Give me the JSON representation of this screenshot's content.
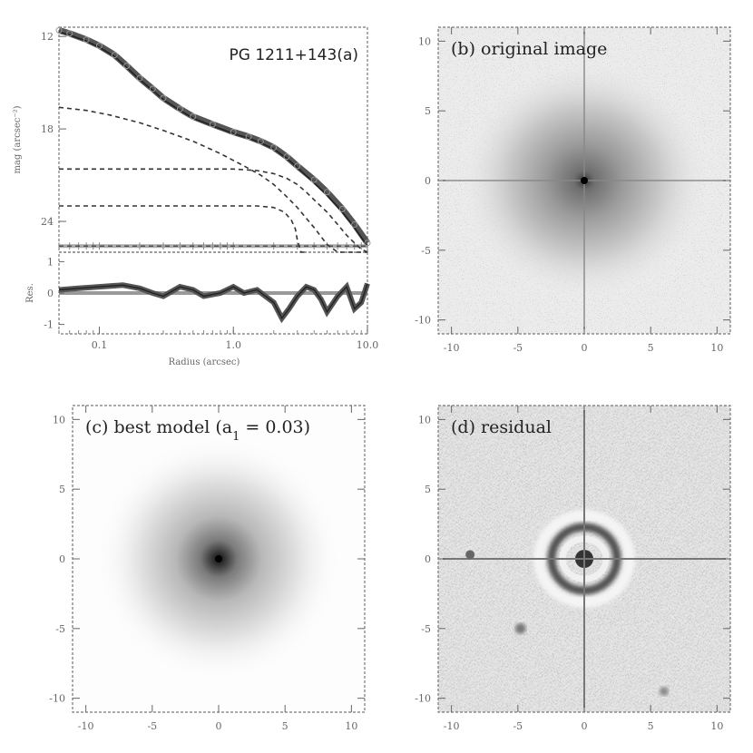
{
  "chart_data": [
    {
      "type": "line",
      "panel": "a",
      "title": "PG 1211+143(a)",
      "xlabel": "Radius (arcsec)",
      "ylabel": "mag (arcsec⁻²)",
      "residual_ylabel": "Res.",
      "x_scale": "log",
      "xlim": [
        0.05,
        10.0
      ],
      "ylim": [
        26.0,
        11.4
      ],
      "residual_ylim": [
        -1.3,
        1.3
      ],
      "xtick_labels": [
        "0.1",
        "1.0",
        "10.0"
      ],
      "xticks": [
        0.1,
        1.0,
        10.0
      ],
      "ytick_labels": [
        "12",
        "18",
        "24"
      ],
      "yticks": [
        12,
        18,
        24
      ],
      "residual_tick_labels": [
        "1",
        "0",
        "-1"
      ],
      "residual_ticks": [
        1,
        0,
        -1
      ],
      "series": [
        {
          "role": "data",
          "x": [
            0.05,
            0.06,
            0.08,
            0.1,
            0.13,
            0.16,
            0.2,
            0.25,
            0.3,
            0.4,
            0.5,
            0.7,
            1.0,
            1.3,
            1.6,
            2.0,
            2.5,
            3.0,
            4.0,
            5.0,
            6.5,
            8.0,
            10.0
          ],
          "y": [
            11.6,
            11.8,
            12.2,
            12.6,
            13.2,
            13.9,
            14.7,
            15.4,
            16.0,
            16.7,
            17.2,
            17.7,
            18.2,
            18.5,
            18.8,
            19.2,
            19.8,
            20.4,
            21.3,
            22.1,
            23.2,
            24.2,
            25.4
          ]
        },
        {
          "role": "model-total",
          "x": [
            0.05,
            0.06,
            0.08,
            0.1,
            0.13,
            0.16,
            0.2,
            0.25,
            0.3,
            0.4,
            0.5,
            0.7,
            1.0,
            1.3,
            1.6,
            2.0,
            2.5,
            3.0,
            4.0,
            5.0,
            6.5,
            8.0,
            10.0
          ],
          "y": [
            11.7,
            11.9,
            12.3,
            12.7,
            13.3,
            14.0,
            14.8,
            15.5,
            16.1,
            16.8,
            17.3,
            17.8,
            18.3,
            18.6,
            18.9,
            19.3,
            19.9,
            20.5,
            21.5,
            22.3,
            23.4,
            24.4,
            25.6
          ]
        },
        {
          "role": "component-a",
          "x": [
            0.05,
            0.08,
            0.12,
            0.2,
            0.3,
            0.5,
            0.8,
            1.2,
            1.6,
            2.0,
            2.5,
            3.0,
            3.5,
            4.0,
            5.0,
            6.0,
            7.0,
            8.0,
            9.0,
            10.0
          ],
          "y": [
            16.6,
            16.8,
            17.1,
            17.6,
            18.1,
            18.8,
            19.6,
            20.4,
            21.0,
            21.6,
            22.4,
            23.1,
            23.8,
            24.4,
            25.5,
            26.0,
            26.0,
            26.0,
            26.0,
            26.0
          ]
        },
        {
          "role": "component-b",
          "x": [
            0.05,
            0.1,
            0.3,
            0.6,
            1.0,
            1.5,
            2.0,
            2.5,
            3.0,
            3.5,
            4.0,
            5.0,
            6.0,
            7.0,
            8.0,
            9.0,
            10.0
          ],
          "y": [
            20.6,
            20.6,
            20.6,
            20.6,
            20.6,
            20.7,
            20.9,
            21.2,
            21.6,
            22.1,
            22.6,
            23.4,
            24.2,
            24.9,
            25.4,
            25.8,
            26.0
          ]
        },
        {
          "role": "component-c",
          "x": [
            0.05,
            0.1,
            0.3,
            0.6,
            1.0,
            1.5,
            2.0,
            2.4,
            2.7,
            2.9,
            3.0,
            3.2,
            3.5
          ],
          "y": [
            23.0,
            23.0,
            23.0,
            23.0,
            23.0,
            23.0,
            23.1,
            23.4,
            23.9,
            24.5,
            25.2,
            26.0,
            26.0
          ]
        },
        {
          "role": "component-d",
          "x": [
            0.05,
            0.1,
            0.3,
            0.6,
            1.0,
            1.5,
            2.0,
            2.5,
            3.0,
            4.0,
            5.0,
            6.0,
            8.0,
            10.0
          ],
          "y": [
            25.6,
            25.6,
            25.6,
            25.6,
            25.6,
            25.6,
            25.6,
            25.6,
            25.6,
            25.6,
            25.6,
            25.6,
            25.6,
            25.6
          ]
        },
        {
          "role": "residual",
          "x": [
            0.05,
            0.07,
            0.1,
            0.15,
            0.2,
            0.25,
            0.3,
            0.4,
            0.5,
            0.6,
            0.8,
            1.0,
            1.2,
            1.5,
            2.0,
            2.3,
            2.6,
            3.0,
            3.5,
            4.0,
            4.5,
            5.0,
            6.0,
            7.0,
            8.0,
            9.0,
            10.0
          ],
          "y": [
            0.1,
            0.15,
            0.2,
            0.25,
            0.15,
            0.0,
            -0.1,
            0.2,
            0.1,
            -0.1,
            0.0,
            0.2,
            0.0,
            0.1,
            -0.3,
            -0.8,
            -0.5,
            -0.1,
            0.2,
            0.1,
            -0.2,
            -0.6,
            -0.1,
            0.2,
            -0.5,
            -0.3,
            0.3
          ]
        }
      ]
    },
    {
      "type": "heatmap",
      "panel": "b",
      "title": "(b) original image",
      "xlim": [
        -11,
        11
      ],
      "ylim": [
        -11,
        11
      ],
      "xtick_labels": [
        "-10",
        "-5",
        "0",
        "5",
        "10"
      ],
      "ytick_labels": [
        "10",
        "5",
        "0",
        "-5",
        "-10"
      ],
      "ticks": [
        -10,
        -5,
        0,
        5,
        10
      ]
    },
    {
      "type": "heatmap",
      "panel": "c",
      "title": "(c) best model (a",
      "title_sub": "1",
      "title_tail": " = 0.03)",
      "xlim": [
        -11,
        11
      ],
      "ylim": [
        -11,
        11
      ],
      "xtick_labels": [
        "-10",
        "-5",
        "0",
        "5",
        "10"
      ],
      "ytick_labels": [
        "10",
        "5",
        "0",
        "-5",
        "-10"
      ],
      "ticks": [
        -10,
        -5,
        0,
        5,
        10
      ]
    },
    {
      "type": "heatmap",
      "panel": "d",
      "title": "(d) residual",
      "xlim": [
        -11,
        11
      ],
      "ylim": [
        -11,
        11
      ],
      "xtick_labels": [
        "-10",
        "-5",
        "0",
        "5",
        "10"
      ],
      "ytick_labels": [
        "10",
        "5",
        "0",
        "-5",
        "-10"
      ],
      "ticks": [
        -10,
        -5,
        0,
        5,
        10
      ]
    }
  ]
}
